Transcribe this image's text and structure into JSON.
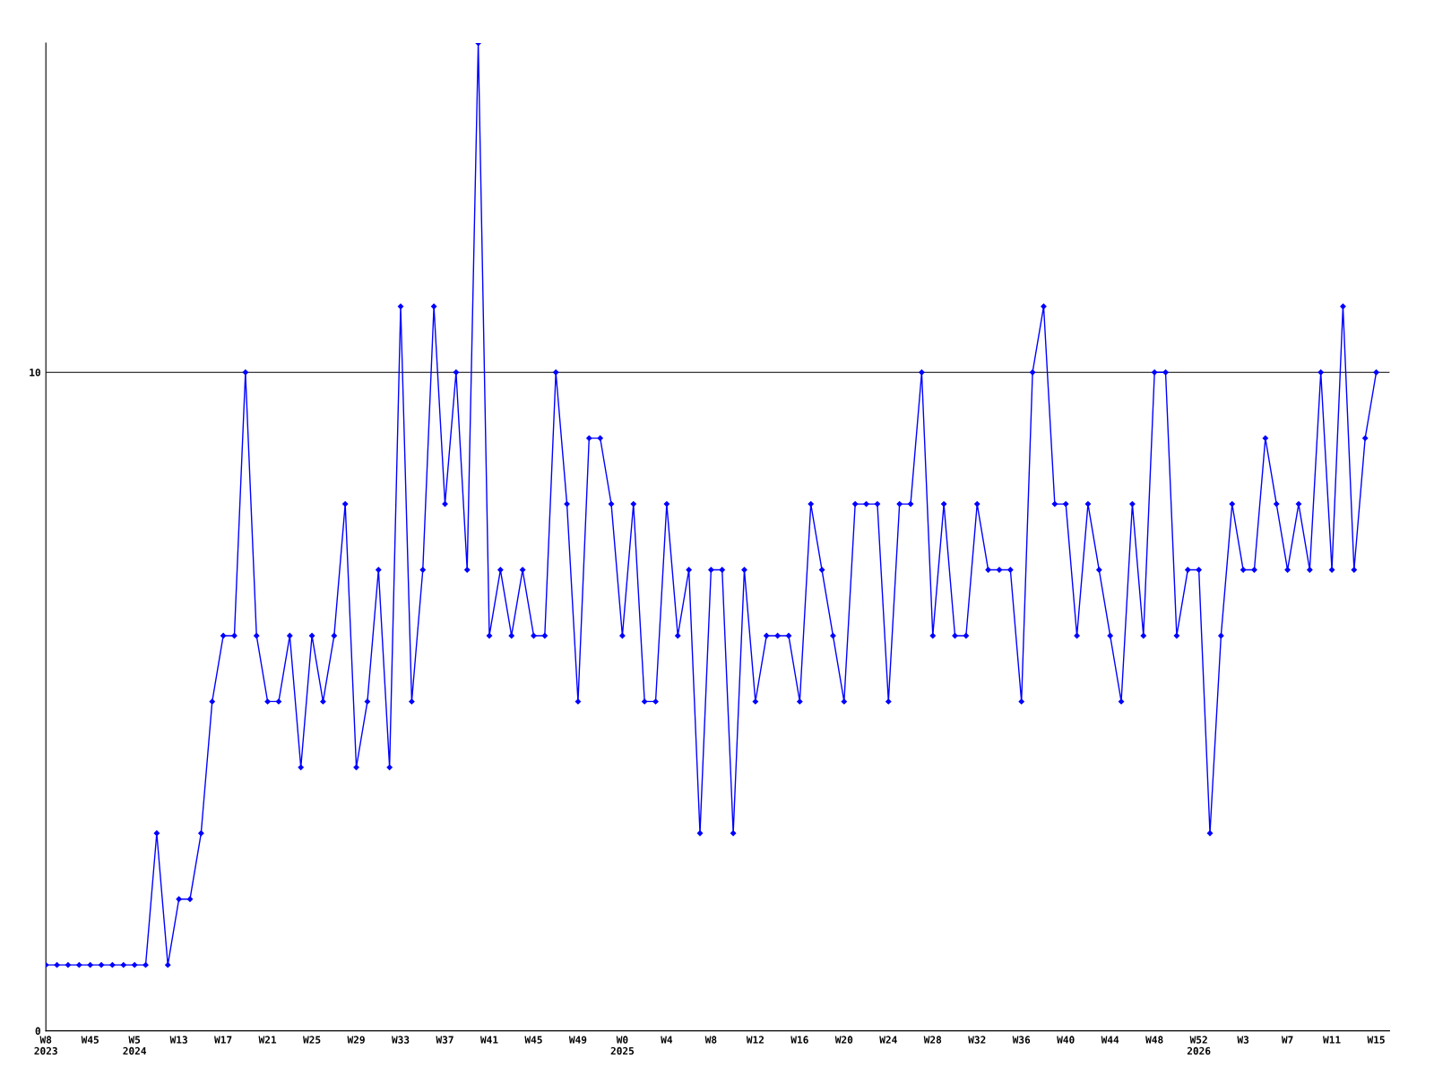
{
  "chart_data": {
    "type": "line",
    "categories": [
      "W8\n2023",
      null,
      null,
      null,
      "W45",
      null,
      null,
      null,
      "W5\n2024",
      null,
      null,
      null,
      "W13",
      null,
      null,
      null,
      "W17",
      null,
      null,
      null,
      "W21",
      null,
      null,
      null,
      "W25",
      null,
      null,
      null,
      "W29",
      null,
      null,
      null,
      "W33",
      null,
      null,
      null,
      "W37",
      null,
      null,
      null,
      "W41",
      null,
      null,
      null,
      "W45",
      null,
      null,
      null,
      "W49",
      null,
      null,
      null,
      "W0\n2025",
      null,
      null,
      null,
      "W4",
      null,
      null,
      null,
      "W8",
      null,
      null,
      null,
      "W12",
      null,
      null,
      null,
      "W16",
      null,
      null,
      null,
      "W20",
      null,
      null,
      null,
      "W24",
      null,
      null,
      null,
      "W28",
      null,
      null,
      null,
      "W32",
      null,
      null,
      null,
      "W36",
      null,
      null,
      null,
      "W40",
      null,
      null,
      null,
      "W44",
      null,
      null,
      null,
      "W48",
      null,
      null,
      null,
      "W52\n2026",
      null,
      null,
      null,
      "W3",
      null,
      null,
      null,
      "W7",
      null,
      null,
      null,
      "W11",
      null,
      null,
      null,
      "W15"
    ],
    "series": [
      {
        "color": "#0000ff",
        "values": [
          1,
          1,
          1,
          1,
          1,
          1,
          1,
          1,
          1,
          1,
          3,
          1,
          2,
          2,
          3,
          5,
          6,
          6,
          10,
          6,
          5,
          5,
          6,
          4,
          6,
          5,
          6,
          8,
          4,
          5,
          7,
          4,
          11,
          5,
          7,
          11,
          8,
          10,
          7,
          15,
          6,
          7,
          6,
          7,
          6,
          6,
          10,
          8,
          5,
          9,
          9,
          8,
          6,
          8,
          5,
          5,
          8,
          6,
          7,
          3,
          7,
          7,
          3,
          7,
          5,
          6,
          6,
          6,
          5,
          8,
          7,
          6,
          5,
          8,
          8,
          8,
          5,
          8,
          8,
          10,
          6,
          8,
          6,
          6,
          8,
          7,
          7,
          7,
          5,
          10,
          11,
          8,
          8,
          6,
          8,
          7,
          6,
          5,
          8,
          6,
          10,
          10,
          6,
          7,
          7,
          3,
          6,
          8,
          7,
          7,
          9,
          8,
          7,
          8,
          7,
          10,
          7,
          11,
          7,
          9,
          10
        ]
      }
    ],
    "ylim": [
      0,
      15
    ],
    "yticks": [
      0,
      10
    ],
    "grid": "y",
    "marker": "diamond",
    "line_style": "solid"
  }
}
